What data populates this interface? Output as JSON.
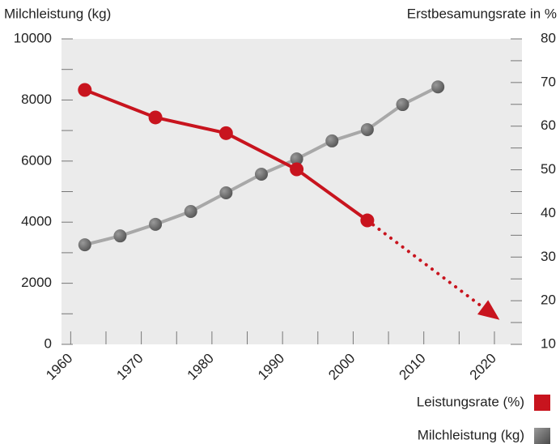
{
  "chart_data": {
    "type": "line",
    "y_label": "Milchleistung (kg)",
    "y2_label": "Erstbesamungsrate in %",
    "xlim": [
      1958.7,
      2023.9
    ],
    "xticks": [
      1960,
      1970,
      1980,
      1990,
      2000,
      2010,
      2020
    ],
    "ylim": [
      0,
      10000
    ],
    "yticks": [
      0,
      2000,
      4000,
      6000,
      8000,
      10000
    ],
    "y2lim": [
      10,
      80
    ],
    "y2ticks": [
      10,
      20,
      30,
      40,
      50,
      60,
      70,
      80
    ],
    "series": [
      {
        "name": "Leistungsrate (%)",
        "color": "#c8141e",
        "axis": "y2",
        "x": [
          1962,
          1972,
          1982,
          1992,
          2002
        ],
        "values": [
          68.3,
          62.0,
          58.4,
          50.1,
          38.4
        ]
      },
      {
        "name": "Milchleistung (kg)",
        "color": "#6e6e6e",
        "axis": "y",
        "x": [
          1962,
          1967,
          1972,
          1977,
          1982,
          1987,
          1992,
          1997,
          2002,
          2007,
          2012
        ],
        "values": [
          3260,
          3550,
          3930,
          4350,
          4960,
          5570,
          6070,
          6660,
          7030,
          7850,
          8430
        ]
      }
    ],
    "forecast": {
      "x": [
        2002,
        2020
      ],
      "values": [
        38.4,
        16.5
      ]
    }
  }
}
